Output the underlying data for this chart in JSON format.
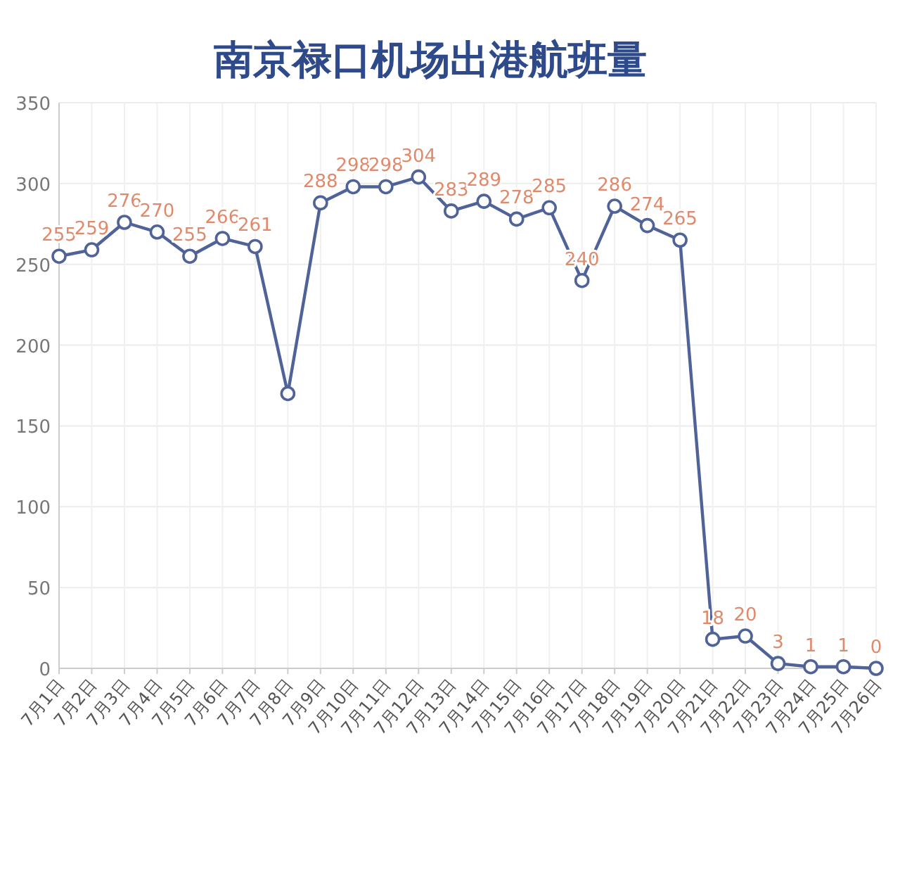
{
  "chart_data": {
    "type": "line",
    "title": "南京禄口机场出港航班量",
    "categories": [
      "7月1日",
      "7月2日",
      "7月3日",
      "7月4日",
      "7月5日",
      "7月6日",
      "7月7日",
      "7月8日",
      "7月9日",
      "7月10日",
      "7月11日",
      "7月12日",
      "7月13日",
      "7月14日",
      "7月15日",
      "7月16日",
      "7月17日",
      "7月18日",
      "7月19日",
      "7月20日",
      "7月21日",
      "7月22日",
      "7月23日",
      "7月24日",
      "7月25日",
      "7月26日"
    ],
    "series": [
      {
        "color": "#4f6399",
        "values": [
          255,
          259,
          276,
          270,
          255,
          266,
          261,
          170,
          288,
          298,
          298,
          304,
          283,
          289,
          278,
          285,
          240,
          286,
          274,
          265,
          18,
          20,
          3,
          1,
          1,
          0
        ],
        "value_labels": [
          "255",
          "259",
          "276",
          "270",
          "255",
          "266",
          "261",
          null,
          "288",
          "298",
          "298",
          "304",
          "283",
          "289",
          "278",
          "285",
          "240",
          "286",
          "274",
          "265",
          "18",
          "20",
          "3",
          "1",
          "1",
          "0"
        ]
      }
    ],
    "ylim": [
      0,
      350
    ],
    "yticks": [
      0,
      50,
      100,
      150,
      200,
      250,
      300,
      350
    ],
    "grid": true,
    "marker": "circle",
    "line_style": "solid"
  }
}
